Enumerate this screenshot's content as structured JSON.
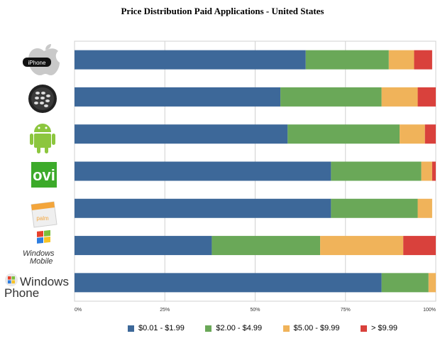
{
  "chart_data": {
    "type": "bar",
    "orientation": "horizontal",
    "stacked": true,
    "title": "Price Distribution Paid Applications - United States",
    "categories": [
      "iPhone",
      "BlackBerry",
      "Android",
      "Ovi",
      "Palm",
      "Windows Mobile",
      "Windows Phone"
    ],
    "series": [
      {
        "name": "$0.01 - $1.99",
        "color": "#3d6899",
        "values": [
          64,
          57,
          59,
          71,
          71,
          38,
          85
        ]
      },
      {
        "name": "$2.00 - $4.99",
        "color": "#6aa858",
        "values": [
          23,
          28,
          31,
          25,
          24,
          30,
          13
        ]
      },
      {
        "name": "$5.00 - $9.99",
        "color": "#f0b35a",
        "values": [
          7,
          10,
          7,
          3,
          4,
          23,
          2
        ]
      },
      {
        "name": "> $9.99",
        "color": "#d9413c",
        "values": [
          5,
          5,
          3,
          1,
          0,
          9,
          0
        ]
      }
    ],
    "xlim": [
      0,
      100
    ],
    "xticks": [
      "0%",
      "25%",
      "50%",
      "75%",
      "100%"
    ],
    "grid": true,
    "legend": "bottom"
  },
  "logos": {
    "iphone": {
      "text": "iPhone",
      "icon": "apple-icon"
    },
    "blackberry": {
      "icon": "blackberry-icon"
    },
    "android": {
      "icon": "android-icon"
    },
    "ovi": {
      "text": "ovi",
      "icon": "ovi-logo",
      "color": "#3caa2a"
    },
    "palm": {
      "text": "palm",
      "icon": "palm-bag-icon"
    },
    "windows_mobile": {
      "line1": "Windows",
      "line2": "Mobile",
      "icon": "windows-flag-icon"
    },
    "windows_phone": {
      "line1": "Windows",
      "line2": "Phone",
      "icon": "windows-flag-icon"
    }
  }
}
